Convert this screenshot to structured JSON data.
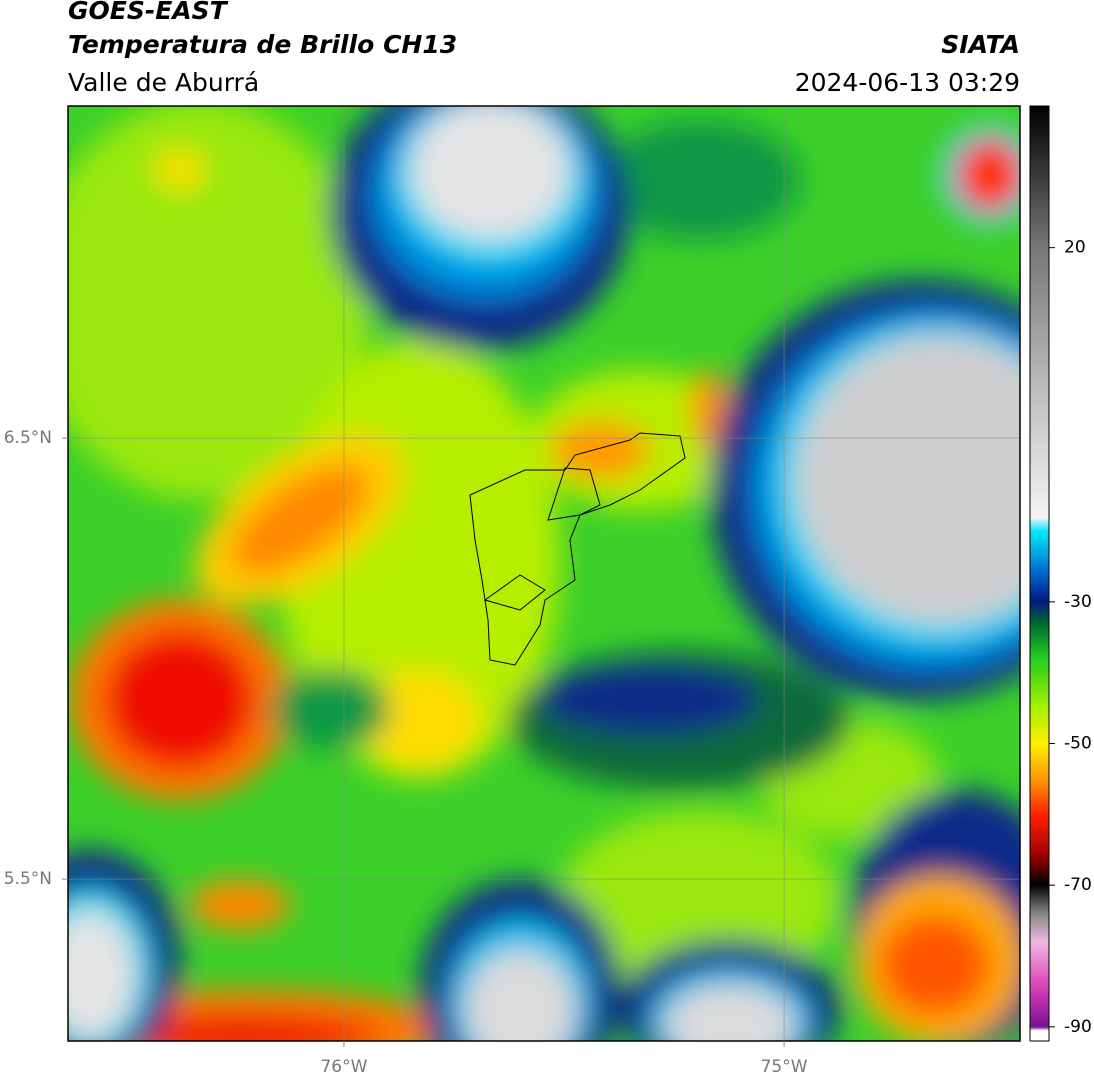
{
  "header": {
    "title": "GOES-EAST",
    "subtitle": "Temperatura de Brillo CH13",
    "region": "Valle de Aburrá",
    "source": "SIATA",
    "timestamp": "2024-06-13 03:29"
  },
  "map": {
    "xlim": [
      -76.627,
      -74.464
    ],
    "ylim": [
      5.133,
      7.253
    ],
    "xticks": [
      {
        "value": -76,
        "label": "76°W"
      },
      {
        "value": -75,
        "label": "75°W"
      }
    ],
    "yticks": [
      {
        "value": 6.5,
        "label": "6.5°N"
      },
      {
        "value": 5.5,
        "label": "5.5°N"
      }
    ],
    "grid": true
  },
  "colorbar": {
    "lim": [
      -92,
      40
    ],
    "ticks": [
      20,
      -30,
      -50,
      -70,
      -90
    ]
  }
}
